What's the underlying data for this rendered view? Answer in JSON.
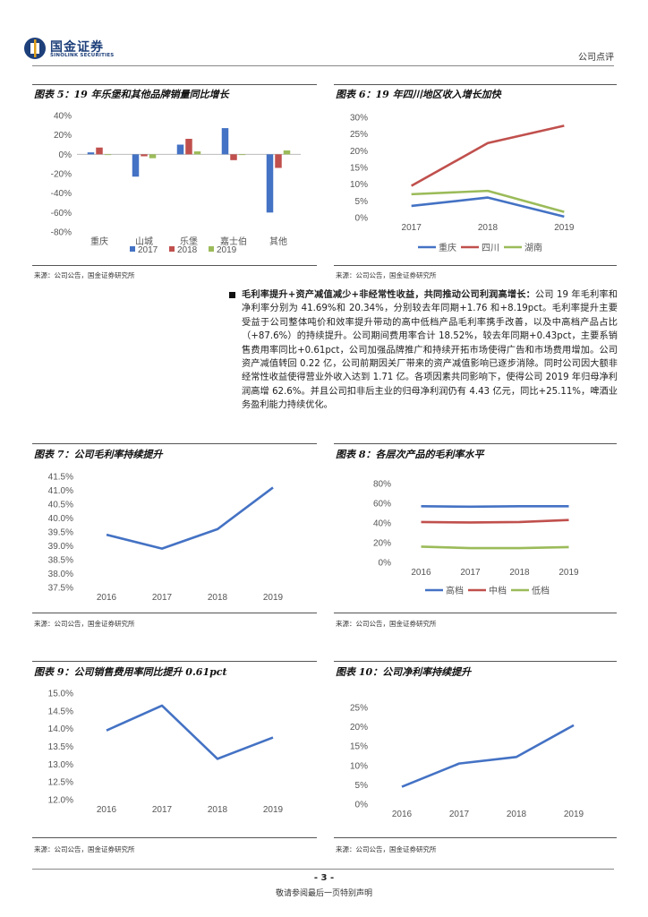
{
  "header": {
    "brand_cn": "国金证券",
    "brand_en": "SINOLINK SECURITIES",
    "report_type": "公司点评"
  },
  "figures": {
    "fig5": {
      "title": "图表 5：19 年乐堡和其他品牌销量同比增长",
      "source": "来源：公司公告，国金证券研究所"
    },
    "fig6": {
      "title": "图表 6：19 年四川地区收入增长加快",
      "source": "来源：公司公告，国金证券研究所"
    },
    "fig7": {
      "title": "图表 7：公司毛利率持续提升",
      "source": "来源：公司公告，国金证券研究所"
    },
    "fig8": {
      "title": "图表 8：各层次产品的毛利率水平",
      "source": "来源：公司公告，国金证券研究所"
    },
    "fig9": {
      "title": "图表 9：公司销售费用率同比提升 0.61pct",
      "source": "来源：公司公告，国金证券研究所"
    },
    "fig10": {
      "title": "图表 10：公司净利率持续提升",
      "source": "来源：公司公告，国金证券研究所"
    }
  },
  "paragraph": {
    "lead": "毛利率提升+资产减值减少+非经常性收益，共同推动公司利润高增长：",
    "body": "公司 19 年毛利率和净利率分别为 41.69%和 20.34%，分别较去年同期+1.76 和+8.19pct。毛利率提升主要受益于公司整体吨价和效率提升带动的高中低档产品毛利率携手改善，以及中高档产品占比（+87.6%）的持续提升。公司期间费用率合计 18.52%，较去年同期+0.43pct，主要系销售费用率同比+0.61pct，公司加强品牌推广和持续开拓市场使得广告和市场费用增加。公司资产减值转回 0.22 亿，公司前期因关厂带来的资产减值影响已逐步消除。同时公司因大额非经常性收益使得营业外收入达到 1.71 亿。各项因素共同影响下，使得公司 2019 年归母净利润高增 62.6%。并且公司扣非后主业的归母净利润仍有 4.43 亿元，同比+25.11%，啤酒业务盈利能力持续优化。"
  },
  "footer": {
    "page_number": "- 3 -",
    "disclaimer": "敬请参阅最后一页特别声明"
  },
  "chart_data": [
    {
      "id": "fig5",
      "type": "bar",
      "categories": [
        "重庆",
        "山城",
        "乐堡",
        "嘉士伯",
        "其他"
      ],
      "series": [
        {
          "name": "2017",
          "color": "#4472c4",
          "values": [
            2,
            -23,
            10,
            27,
            -60
          ]
        },
        {
          "name": "2018",
          "color": "#c0504d",
          "values": [
            7,
            -2,
            16,
            -6,
            -14
          ]
        },
        {
          "name": "2019",
          "color": "#9bbb59",
          "values": [
            0,
            -4,
            3,
            0,
            4
          ]
        }
      ],
      "yticks": [
        "40%",
        "20%",
        "0%",
        "-20%",
        "-40%",
        "-60%",
        "-80%"
      ],
      "ylim": [
        -80,
        40
      ],
      "legend": "bottom"
    },
    {
      "id": "fig6",
      "type": "line",
      "categories": [
        "2017",
        "2018",
        "2019"
      ],
      "series": [
        {
          "name": "重庆",
          "color": "#4472c4",
          "values": [
            3.5,
            6,
            0.3
          ]
        },
        {
          "name": "四川",
          "color": "#c0504d",
          "values": [
            9.5,
            22.3,
            27.5
          ]
        },
        {
          "name": "湖南",
          "color": "#9bbb59",
          "values": [
            7,
            8,
            1.7
          ]
        }
      ],
      "yticks": [
        "30%",
        "25%",
        "20%",
        "15%",
        "10%",
        "5%",
        "0%"
      ],
      "ylim": [
        0,
        30
      ],
      "legend": "bottom"
    },
    {
      "id": "fig7",
      "type": "line",
      "categories": [
        "2016",
        "2017",
        "2018",
        "2019"
      ],
      "series": [
        {
          "name": "",
          "color": "#4472c4",
          "values": [
            39.4,
            38.9,
            39.6,
            41.1
          ]
        }
      ],
      "yticks": [
        "41.5%",
        "41.0%",
        "40.5%",
        "40.0%",
        "39.5%",
        "39.0%",
        "38.5%",
        "38.0%",
        "37.5%"
      ],
      "ylim": [
        37.5,
        41.5
      ],
      "legend": "none"
    },
    {
      "id": "fig8",
      "type": "line",
      "categories": [
        "2016",
        "2017",
        "2018",
        "2019"
      ],
      "series": [
        {
          "name": "高档",
          "color": "#4472c4",
          "values": [
            57,
            56.5,
            57,
            57
          ]
        },
        {
          "name": "中档",
          "color": "#c0504d",
          "values": [
            41,
            40.5,
            41,
            43
          ]
        },
        {
          "name": "低档",
          "color": "#9bbb59",
          "values": [
            16,
            14.5,
            14.5,
            15.5
          ]
        }
      ],
      "yticks": [
        "80%",
        "60%",
        "40%",
        "20%",
        "0%"
      ],
      "ylim": [
        0,
        80
      ],
      "legend": "bottom"
    },
    {
      "id": "fig9",
      "type": "line",
      "categories": [
        "2016",
        "2017",
        "2018",
        "2019"
      ],
      "series": [
        {
          "name": "",
          "color": "#4472c4",
          "values": [
            13.95,
            14.65,
            13.15,
            13.75
          ]
        }
      ],
      "yticks": [
        "15.0%",
        "14.5%",
        "14.0%",
        "13.5%",
        "13.0%",
        "12.5%",
        "12.0%"
      ],
      "ylim": [
        12,
        15
      ],
      "legend": "none"
    },
    {
      "id": "fig10",
      "type": "line",
      "categories": [
        "2016",
        "2017",
        "2018",
        "2019"
      ],
      "series": [
        {
          "name": "",
          "color": "#4472c4",
          "values": [
            4.5,
            10.5,
            12.2,
            20.4
          ]
        }
      ],
      "yticks": [
        "25%",
        "20%",
        "15%",
        "10%",
        "5%",
        "0%"
      ],
      "ylim": [
        0,
        25
      ],
      "legend": "none"
    }
  ]
}
